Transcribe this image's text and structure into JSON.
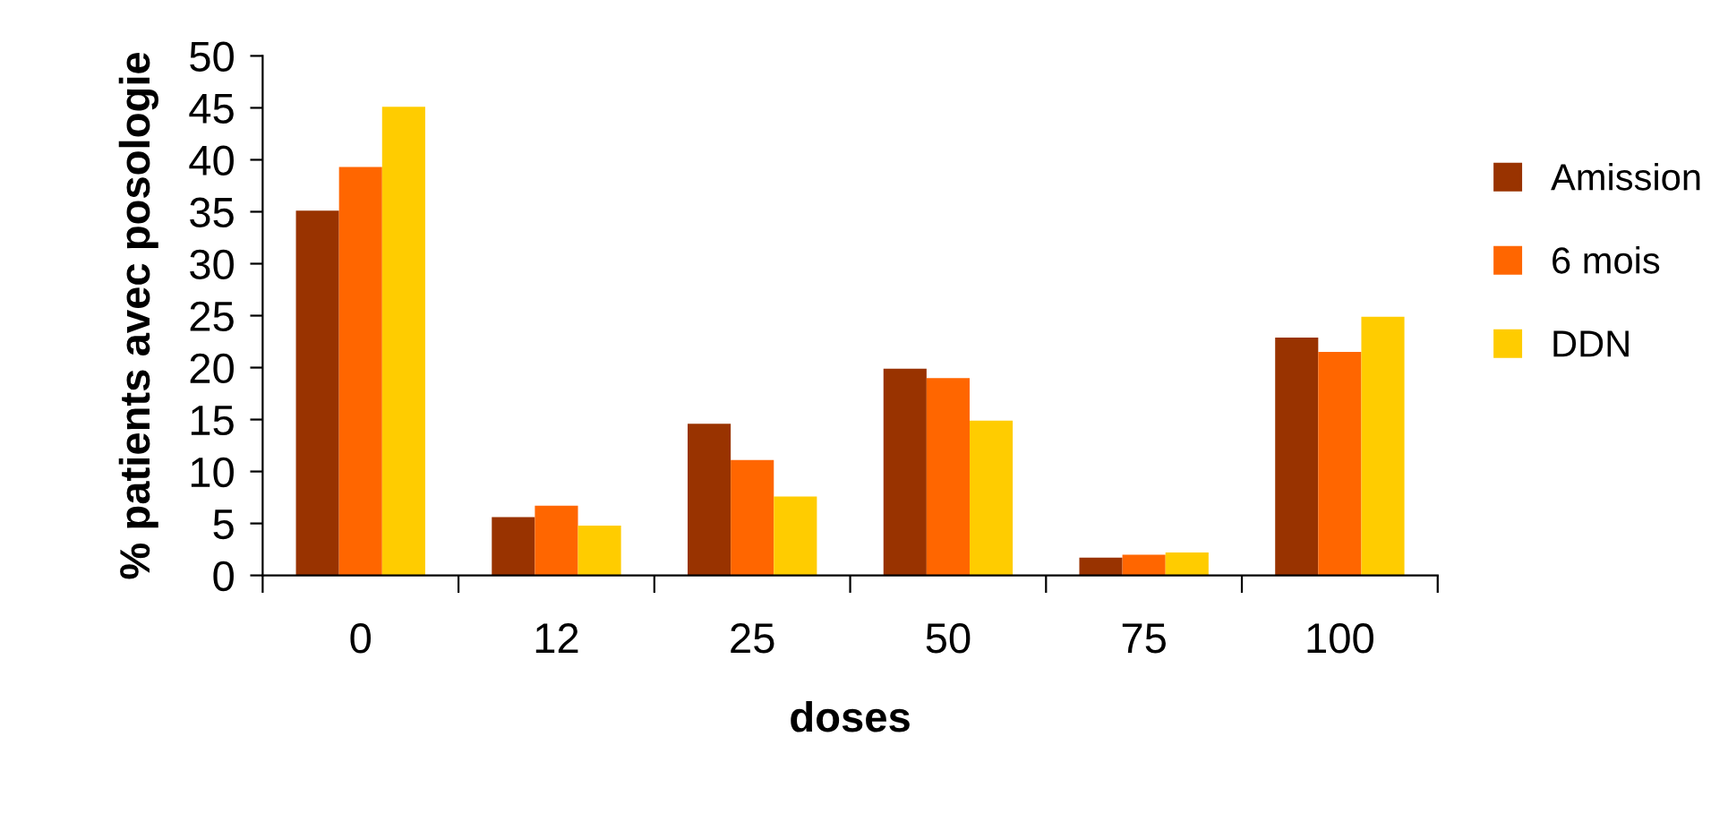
{
  "chart_data": {
    "type": "bar",
    "xlabel": "doses",
    "ylabel": "% patients avec posologie",
    "categories": [
      "0",
      "12",
      "25",
      "50",
      "75",
      "100"
    ],
    "series": [
      {
        "name": "Amission",
        "color": "#993300",
        "values": [
          35.1,
          5.6,
          14.6,
          19.9,
          1.7,
          22.9
        ]
      },
      {
        "name": "6 mois",
        "color": "#ff6600",
        "values": [
          39.3,
          6.7,
          11.1,
          19.0,
          2.0,
          21.5
        ]
      },
      {
        "name": "DDN",
        "color": "#ffcc00",
        "values": [
          45.1,
          4.8,
          7.6,
          14.9,
          2.2,
          24.9
        ]
      }
    ],
    "ylim": [
      0,
      50
    ],
    "yticks": [
      0,
      5,
      10,
      15,
      20,
      25,
      30,
      35,
      40,
      45,
      50
    ],
    "grid": false,
    "legend": "right"
  }
}
